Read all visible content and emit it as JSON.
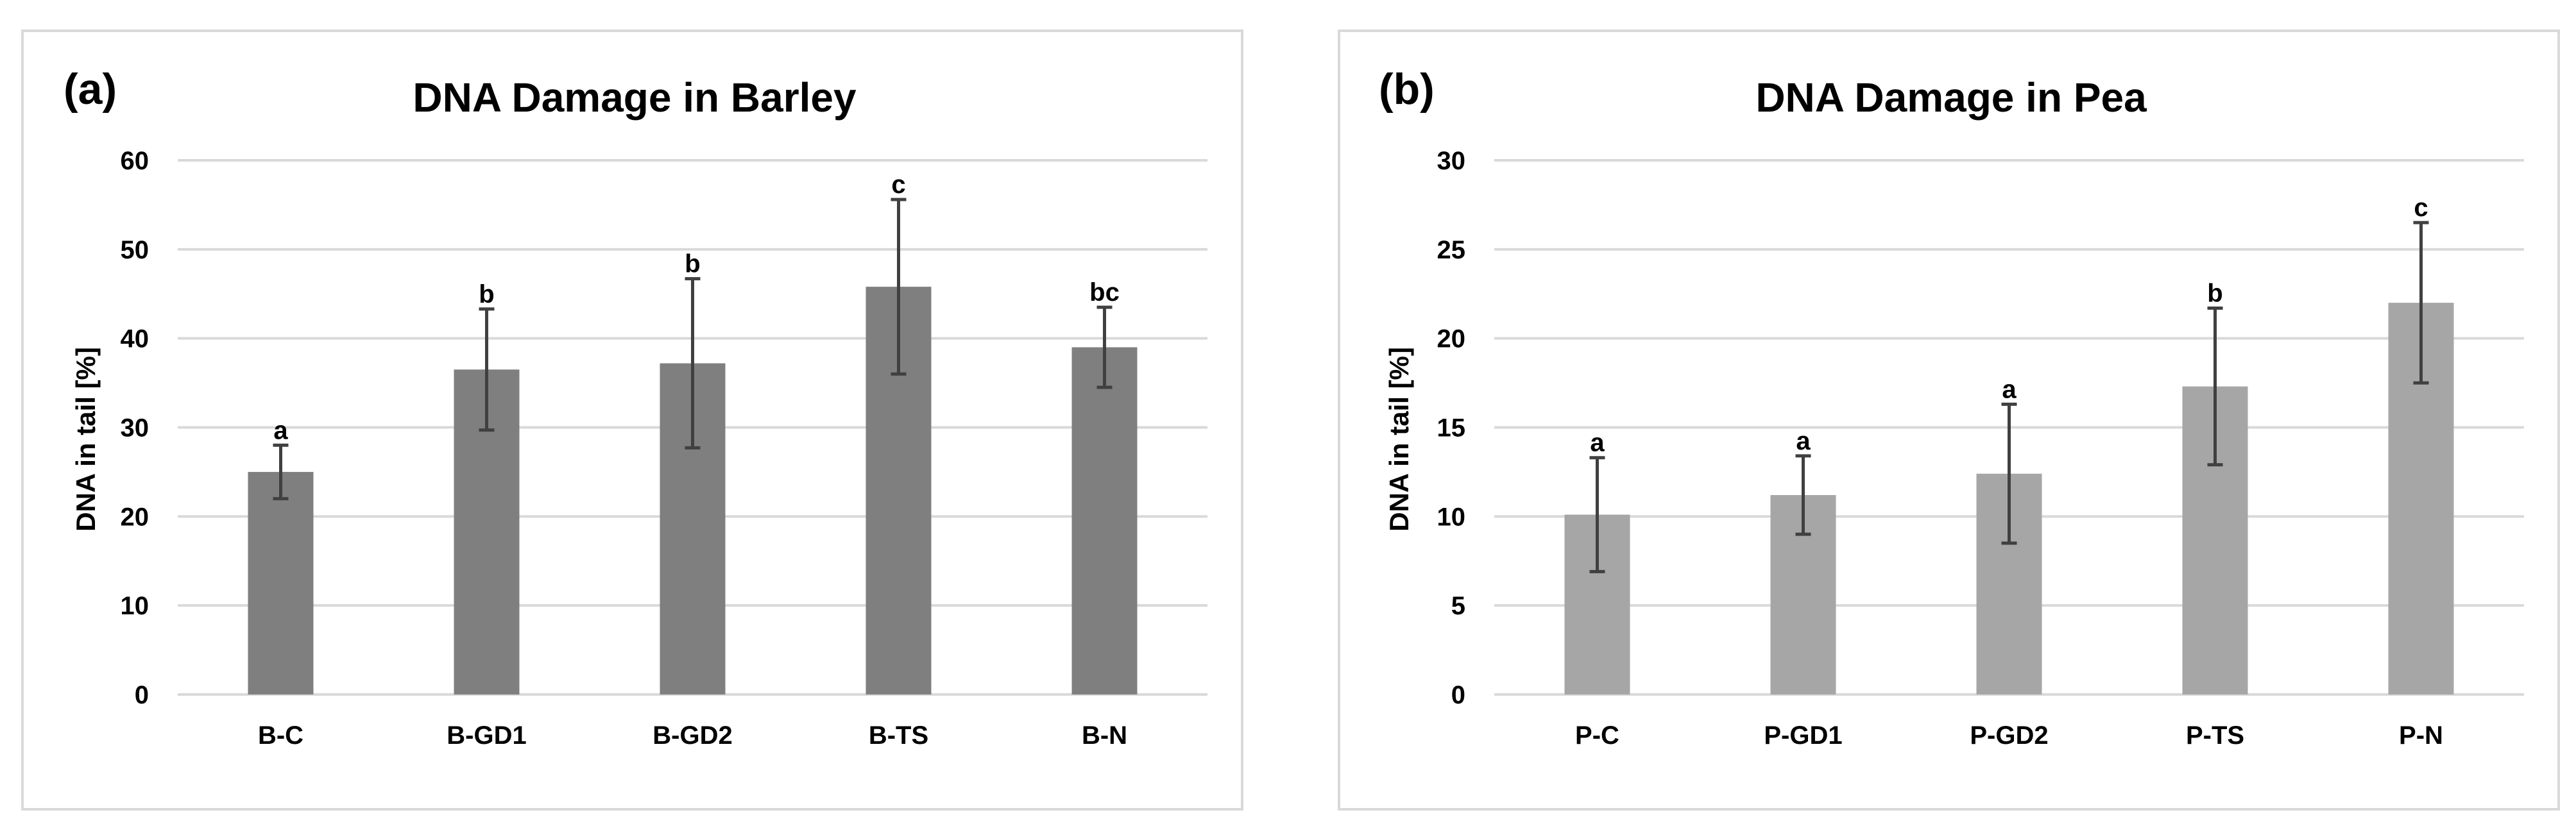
{
  "chart_data": [
    {
      "type": "bar",
      "panel_label": "(a)",
      "title": "DNA Damage in Barley",
      "xlabel": "",
      "ylabel": "DNA in tail [%]",
      "ylim": [
        0,
        60
      ],
      "yticks": [
        0,
        10,
        20,
        30,
        40,
        50,
        60
      ],
      "grid": true,
      "bar_color": "#7f7f7f",
      "categories": [
        "B-C",
        "B-GD1",
        "B-GD2",
        "B-TS",
        "B-N"
      ],
      "values": [
        25,
        36.5,
        37.2,
        45.8,
        39
      ],
      "errors": [
        3,
        6.8,
        9.5,
        9.8,
        4.5
      ],
      "significance": [
        "a",
        "b",
        "b",
        "c",
        "bc"
      ]
    },
    {
      "type": "bar",
      "panel_label": "(b)",
      "title": "DNA Damage in Pea",
      "xlabel": "",
      "ylabel": "DNA in tail [%]",
      "ylim": [
        0,
        30
      ],
      "yticks": [
        0,
        5,
        10,
        15,
        20,
        25,
        30
      ],
      "grid": true,
      "bar_color": "#a6a6a6",
      "categories": [
        "P-C",
        "P-GD1",
        "P-GD2",
        "P-TS",
        "P-N"
      ],
      "values": [
        10.1,
        11.2,
        12.4,
        17.3,
        22
      ],
      "errors": [
        3.2,
        2.2,
        3.9,
        4.4,
        4.5
      ],
      "significance": [
        "a",
        "a",
        "a",
        "b",
        "c"
      ]
    }
  ]
}
